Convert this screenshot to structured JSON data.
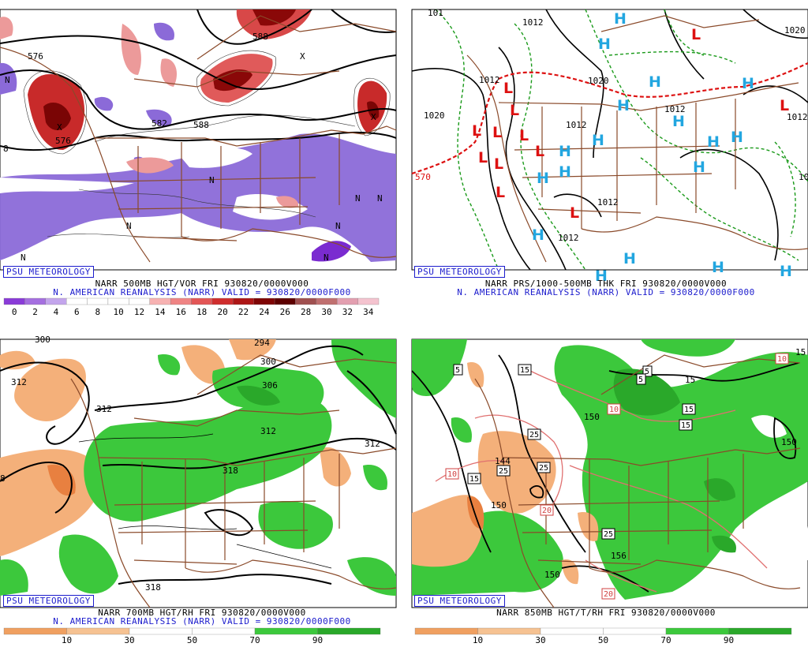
{
  "brand": "PSU METEOROLOGY",
  "panels": {
    "p1": {
      "caption1": "NARR 500MB HGT/VOR FRI 930820/0000V000",
      "caption2": "N. AMERICAN REANALYSIS (NARR) VALID = 930820/0000F000",
      "colorbar": {
        "colors": [
          "#8a3bd8",
          "#a56fe0",
          "#c3a5ec",
          "#ffffff",
          "#ffffff",
          "#ffffff",
          "#ffffff",
          "#f7b2b2",
          "#ef8484",
          "#e35656",
          "#cf2d2d",
          "#ad1616",
          "#7f0505",
          "#5d0000",
          "#a05050",
          "#c07070",
          "#e39fb0",
          "#f4c3cf"
        ],
        "labels": [
          "0",
          "2",
          "4",
          "6",
          "8",
          "10",
          "12",
          "14",
          "16",
          "18",
          "20",
          "22",
          "24",
          "26",
          "28",
          "30",
          "32",
          "34"
        ]
      },
      "contour_labels": [
        "576",
        "582",
        "588",
        "588",
        "576",
        "8"
      ],
      "vort_marks": [
        "N",
        "N",
        "N",
        "N",
        "N",
        "N",
        "N",
        "N",
        "X",
        "X",
        "X"
      ]
    },
    "p2": {
      "caption1": "NARR PRS/1000-500MB THK FRI 930820/0000V000",
      "caption2": "N. AMERICAN REANALYSIS (NARR) VALID = 930820/0000F000",
      "isobar_labels": [
        "1012",
        "1012",
        "1012",
        "1012",
        "1012",
        "1012",
        "1020",
        "1020",
        "1020",
        "1012",
        "101",
        "10",
        "570"
      ],
      "lows": [
        "L",
        "L",
        "L",
        "L",
        "L",
        "L",
        "L",
        "L",
        "L",
        "L",
        "L",
        "L"
      ],
      "highs": [
        "H",
        "H",
        "H",
        "H",
        "H",
        "H",
        "H",
        "H",
        "H",
        "H",
        "H",
        "H",
        "H",
        "H",
        "H",
        "H",
        "H",
        "H"
      ]
    },
    "p3": {
      "caption1": "NARR 700MB HGT/RH FRI 930820/0000V000",
      "caption2": "N. AMERICAN REANALYSIS (NARR) VALID = 930820/0000F000",
      "colorbar": {
        "colors": [
          "#f0a060",
          "#f6c292",
          "#ffffff",
          "#ffffff",
          "#3cc83c",
          "#2aa82a"
        ],
        "labels": [
          "10",
          "30",
          "50",
          "70",
          "90"
        ]
      },
      "contour_labels": [
        "312",
        "312",
        "300",
        "294",
        "306",
        "312",
        "312",
        "318",
        "318",
        "300",
        "8"
      ]
    },
    "p4": {
      "caption1": "NARR 850MB HGT/T/RH FRI 930820/0000V000",
      "colorbar": {
        "colors": [
          "#f0a060",
          "#f6c292",
          "#ffffff",
          "#ffffff",
          "#3cc83c",
          "#2aa82a"
        ],
        "labels": [
          "10",
          "30",
          "50",
          "70",
          "90"
        ]
      },
      "contour_labels": [
        "144",
        "150",
        "150",
        "150",
        "156",
        "150",
        "15",
        "15"
      ],
      "temp_boxes": [
        "5",
        "15",
        "5",
        "10",
        "15",
        "15",
        "25",
        "25",
        "25",
        "10",
        "15",
        "20",
        "25",
        "20",
        "10",
        "5"
      ]
    }
  },
  "colors": {
    "brand": "#1c1ccd",
    "borders": "#8a4a2a",
    "low": "#dd1111",
    "high": "#22a6e0",
    "thk": "#dd1111"
  }
}
